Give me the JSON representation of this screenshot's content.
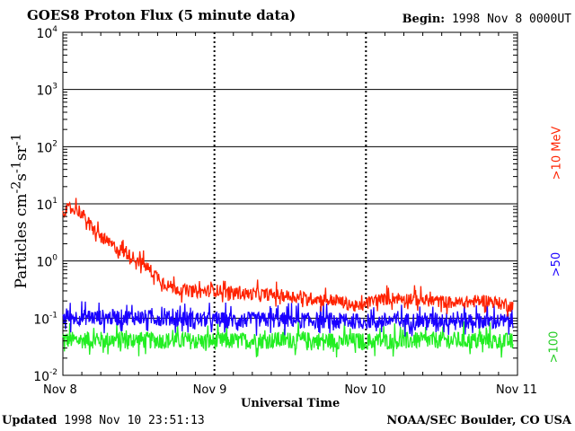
{
  "header": {
    "title": "GOES8 Proton Flux (5 minute data)",
    "begin_label": "Begin:",
    "begin_value": "1998 Nov 8 0000UT"
  },
  "footer": {
    "updated_label": "Updated",
    "updated_value": "1998 Nov 10 23:51:13",
    "credit": "NOAA/SEC Boulder, CO USA"
  },
  "chart_data": {
    "type": "line",
    "title": "GOES8 Proton Flux (5 minute data)",
    "xlabel": "Universal Time",
    "ylabel": "Particles cm-2 s-1 sr-1",
    "yscale": "log",
    "ylim": [
      0.01,
      10000
    ],
    "xlim_days": [
      0,
      3
    ],
    "x_ticks": [
      {
        "day": 0,
        "label": "Nov 8"
      },
      {
        "day": 1,
        "label": "Nov 9"
      },
      {
        "day": 2,
        "label": "Nov 10"
      },
      {
        "day": 3,
        "label": "Nov 11"
      }
    ],
    "y_ticks": [
      {
        "value": 0.01,
        "base": "10",
        "exp": "-2"
      },
      {
        "value": 0.1,
        "base": "10",
        "exp": "-1"
      },
      {
        "value": 1,
        "base": "10",
        "exp": "0"
      },
      {
        "value": 10,
        "base": "10",
        "exp": "1"
      },
      {
        "value": 100,
        "base": "10",
        "exp": "2"
      },
      {
        "value": 1000,
        "base": "10",
        "exp": "3"
      },
      {
        "value": 10000,
        "base": "10",
        "exp": "4"
      }
    ],
    "series": [
      {
        "name": ">10 MeV",
        "color": "#ff2200",
        "x": [
          0,
          0.1,
          0.2,
          0.3,
          0.4,
          0.5,
          0.6,
          0.7,
          0.8,
          0.9,
          1.0,
          1.2,
          1.4,
          1.6,
          1.8,
          1.95,
          2.05,
          2.2,
          2.4,
          2.6,
          2.8,
          2.95
        ],
        "y": [
          7.5,
          8.0,
          3.5,
          2.0,
          1.4,
          1.0,
          0.6,
          0.35,
          0.3,
          0.28,
          0.3,
          0.26,
          0.25,
          0.22,
          0.2,
          0.15,
          0.2,
          0.22,
          0.2,
          0.18,
          0.2,
          0.16
        ]
      },
      {
        "name": ">50",
        "color": "#1a00ff",
        "x": [
          0,
          0.5,
          1.0,
          1.5,
          2.0,
          2.5,
          2.95
        ],
        "y": [
          0.1,
          0.1,
          0.09,
          0.09,
          0.085,
          0.09,
          0.085
        ]
      },
      {
        "name": ">100",
        "color": "#22ee22",
        "x": [
          0,
          0.5,
          1.0,
          1.5,
          2.0,
          2.5,
          2.95
        ],
        "y": [
          0.04,
          0.04,
          0.038,
          0.04,
          0.038,
          0.04,
          0.038
        ]
      }
    ],
    "legend": {
      "placement": "right",
      "entries": [
        ">10 MeV",
        ">50",
        ">100"
      ]
    }
  }
}
